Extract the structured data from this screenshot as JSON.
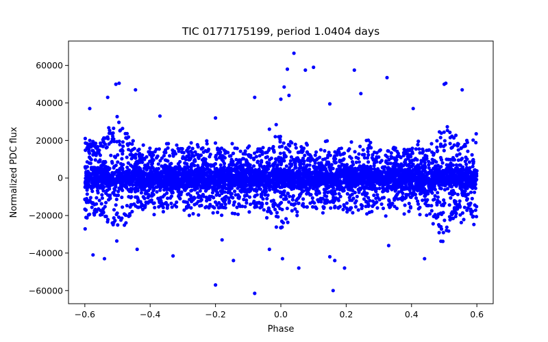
{
  "chart_data": {
    "type": "scatter",
    "title": "TIC 0177175199, period 1.0404 days",
    "xlabel": "Phase",
    "ylabel": "Normalized PDC flux",
    "xlim": [
      -0.65,
      0.65
    ],
    "ylim": [
      -67000,
      73000
    ],
    "x_ticks": [
      -0.6,
      -0.4,
      -0.2,
      0.0,
      0.2,
      0.4,
      0.6
    ],
    "x_tick_labels": [
      "−0.6",
      "−0.4",
      "−0.2",
      "0.0",
      "0.2",
      "0.4",
      "0.6"
    ],
    "y_ticks": [
      -60000,
      -40000,
      -20000,
      0,
      20000,
      40000,
      60000
    ],
    "y_tick_labels": [
      "−60000",
      "−40000",
      "−20000",
      "0",
      "20000",
      "40000",
      "60000"
    ],
    "marker_color": "#0000ff",
    "grid": false,
    "series": [
      {
        "name": "flux",
        "x_range": [
          -0.6,
          0.6
        ],
        "core_amplitude": 11000,
        "envelope": [
          {
            "x": -0.6,
            "amplitude": 22000
          },
          {
            "x": -0.56,
            "amplitude": 18000
          },
          {
            "x": -0.5,
            "amplitude": 30000
          },
          {
            "x": -0.47,
            "amplitude": 24000
          },
          {
            "x": -0.45,
            "amplitude": 16000
          },
          {
            "x": -0.2,
            "amplitude": 16000
          },
          {
            "x": -0.05,
            "amplitude": 16000
          },
          {
            "x": 0.0,
            "amplitude": 27000
          },
          {
            "x": 0.05,
            "amplitude": 16000
          },
          {
            "x": 0.2,
            "amplitude": 17000
          },
          {
            "x": 0.45,
            "amplitude": 16000
          },
          {
            "x": 0.5,
            "amplitude": 30000
          },
          {
            "x": 0.56,
            "amplitude": 18000
          },
          {
            "x": 0.6,
            "amplitude": 22000
          }
        ],
        "outliers": [
          {
            "x": -0.585,
            "y": 37000
          },
          {
            "x": -0.53,
            "y": 43000
          },
          {
            "x": -0.505,
            "y": 50000
          },
          {
            "x": -0.495,
            "y": 50500
          },
          {
            "x": -0.445,
            "y": 47000
          },
          {
            "x": -0.37,
            "y": 33000
          },
          {
            "x": -0.2,
            "y": 32000
          },
          {
            "x": -0.08,
            "y": 43000
          },
          {
            "x": -0.035,
            "y": 26000
          },
          {
            "x": 0.0,
            "y": 42000
          },
          {
            "x": 0.01,
            "y": 48500
          },
          {
            "x": 0.02,
            "y": 58000
          },
          {
            "x": 0.025,
            "y": 44000
          },
          {
            "x": 0.04,
            "y": 66500
          },
          {
            "x": 0.075,
            "y": 57500
          },
          {
            "x": 0.1,
            "y": 59000
          },
          {
            "x": 0.15,
            "y": 39500
          },
          {
            "x": 0.225,
            "y": 57500
          },
          {
            "x": 0.245,
            "y": 45000
          },
          {
            "x": 0.325,
            "y": 53500
          },
          {
            "x": 0.405,
            "y": 37000
          },
          {
            "x": 0.5,
            "y": 50000
          },
          {
            "x": 0.505,
            "y": 50500
          },
          {
            "x": 0.555,
            "y": 47000
          },
          {
            "x": -0.575,
            "y": -41000
          },
          {
            "x": -0.54,
            "y": -43000
          },
          {
            "x": -0.44,
            "y": -38000
          },
          {
            "x": -0.33,
            "y": -41500
          },
          {
            "x": -0.2,
            "y": -57000
          },
          {
            "x": -0.18,
            "y": -33000
          },
          {
            "x": -0.145,
            "y": -44000
          },
          {
            "x": -0.08,
            "y": -61500
          },
          {
            "x": -0.035,
            "y": -38000
          },
          {
            "x": 0.005,
            "y": -43000
          },
          {
            "x": 0.055,
            "y": -48000
          },
          {
            "x": 0.15,
            "y": -42000
          },
          {
            "x": 0.16,
            "y": -60000
          },
          {
            "x": 0.165,
            "y": -44000
          },
          {
            "x": 0.195,
            "y": -48000
          },
          {
            "x": 0.33,
            "y": -36000
          },
          {
            "x": 0.44,
            "y": -43000
          },
          {
            "x": 0.49,
            "y": -26000
          }
        ]
      }
    ]
  }
}
